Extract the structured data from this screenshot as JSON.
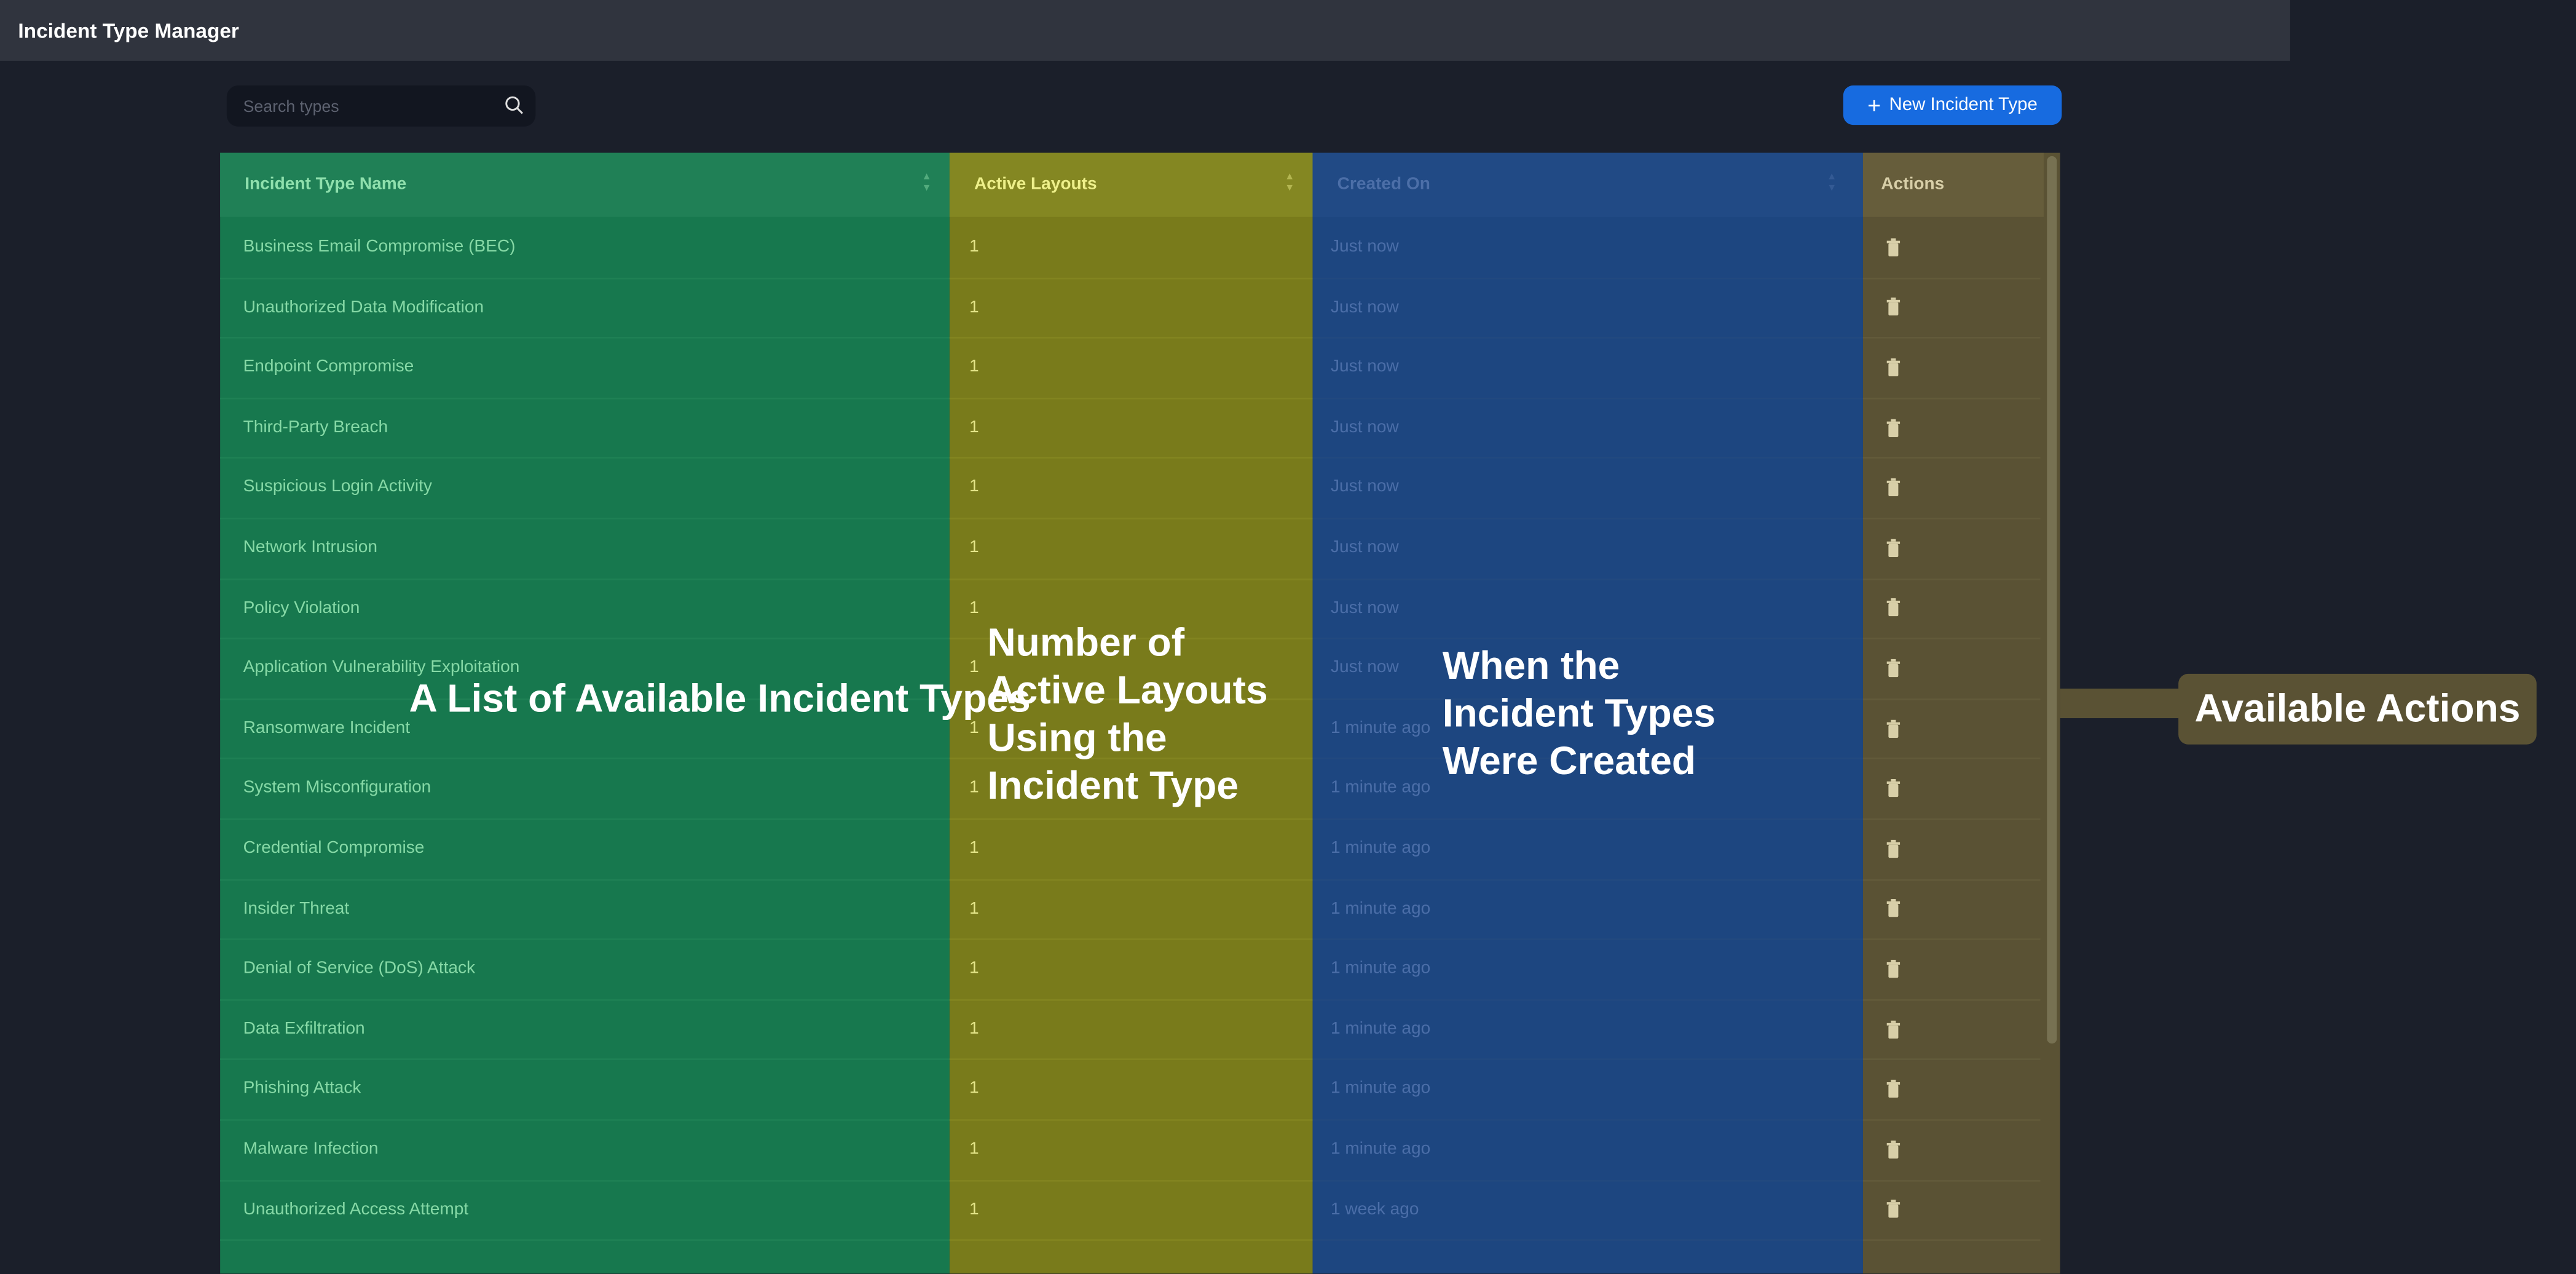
{
  "header": {
    "title": "Incident Type Manager"
  },
  "search": {
    "placeholder": "Search types",
    "icon": "search-icon"
  },
  "toolbar": {
    "new_label": "New Incident Type",
    "new_icon": "plus-icon"
  },
  "colors": {
    "accent": "#176be0",
    "name_col": "#17784e",
    "layouts_col": "#797b1b",
    "created_col": "#1d4680",
    "actions_col": "#5a5234"
  },
  "table": {
    "columns": [
      "Incident Type Name",
      "Active Layouts",
      "Created On",
      "Actions"
    ],
    "rows": [
      {
        "name": "Business Email Compromise (BEC)",
        "layouts": "1",
        "created": "Just now"
      },
      {
        "name": "Unauthorized Data Modification",
        "layouts": "1",
        "created": "Just now"
      },
      {
        "name": "Endpoint Compromise",
        "layouts": "1",
        "created": "Just now"
      },
      {
        "name": "Third-Party Breach",
        "layouts": "1",
        "created": "Just now"
      },
      {
        "name": "Suspicious Login Activity",
        "layouts": "1",
        "created": "Just now"
      },
      {
        "name": "Network Intrusion",
        "layouts": "1",
        "created": "Just now"
      },
      {
        "name": "Policy Violation",
        "layouts": "1",
        "created": "Just now"
      },
      {
        "name": "Application Vulnerability Exploitation",
        "layouts": "1",
        "created": "Just now"
      },
      {
        "name": "Ransomware Incident",
        "layouts": "1",
        "created": "1 minute ago"
      },
      {
        "name": "System Misconfiguration",
        "layouts": "1",
        "created": "1 minute ago"
      },
      {
        "name": "Credential Compromise",
        "layouts": "1",
        "created": "1 minute ago"
      },
      {
        "name": "Insider Threat",
        "layouts": "1",
        "created": "1 minute ago"
      },
      {
        "name": "Denial of Service (DoS) Attack",
        "layouts": "1",
        "created": "1 minute ago"
      },
      {
        "name": "Data Exfiltration",
        "layouts": "1",
        "created": "1 minute ago"
      },
      {
        "name": "Phishing Attack",
        "layouts": "1",
        "created": "1 minute ago"
      },
      {
        "name": "Malware Infection",
        "layouts": "1",
        "created": "1 minute ago"
      },
      {
        "name": "Unauthorized Access Attempt",
        "layouts": "1",
        "created": "1 week ago"
      }
    ],
    "action_icon": "trash-icon"
  },
  "annotations": {
    "names": "A List of Available Incident Types",
    "layouts": "Number of Active Layouts Using the Incident Type",
    "created": "When the Incident Types Were Created",
    "actions": "Available Actions"
  }
}
